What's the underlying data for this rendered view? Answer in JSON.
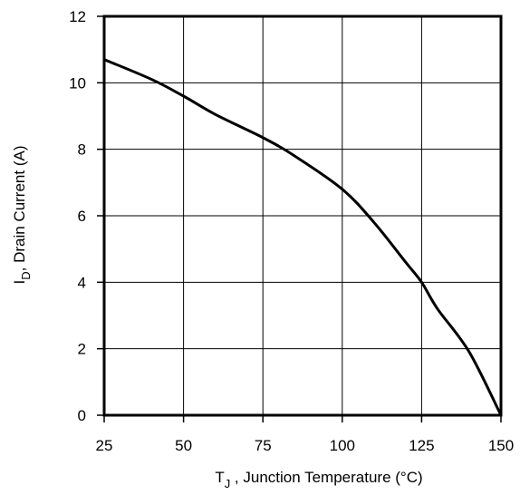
{
  "chart_data": {
    "type": "line",
    "title": "",
    "xlabel": "T J , Junction Temperature (°C)",
    "xlabel_parts": {
      "symbol": "T",
      "subscript": "J",
      "rest": " , Junction Temperature (°C)"
    },
    "ylabel": "ID,  Drain Current (A)",
    "ylabel_parts": {
      "symbol": "I",
      "subscript": "D",
      "rest": ",  Drain Current (A)"
    },
    "xlim": [
      25,
      150
    ],
    "ylim": [
      0,
      12
    ],
    "xticks": [
      25,
      50,
      75,
      100,
      125,
      150
    ],
    "yticks": [
      0,
      2,
      4,
      6,
      8,
      10,
      12
    ],
    "grid": true,
    "series": [
      {
        "color": "#000000",
        "x": [
          25,
          40,
          50,
          60,
          75,
          85,
          100,
          110,
          120,
          125,
          130,
          140,
          150
        ],
        "y": [
          10.7,
          10.1,
          9.6,
          9.05,
          8.35,
          7.8,
          6.8,
          5.8,
          4.6,
          4.0,
          3.2,
          1.9,
          0.0
        ]
      }
    ]
  }
}
